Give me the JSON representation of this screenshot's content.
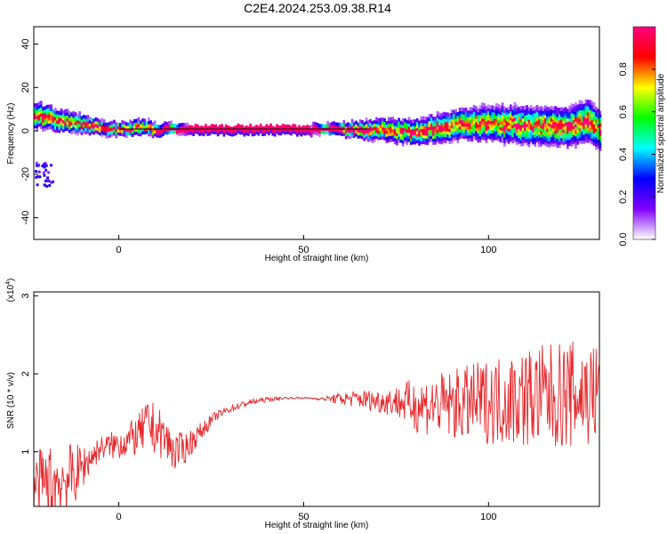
{
  "title": "C2E4.2024.253.09.38.R14",
  "chart_data": [
    {
      "type": "heatmap",
      "xlabel": "Height of straight line (km)",
      "ylabel": "Frequency (Hz)",
      "xlim": [
        -23,
        130
      ],
      "ylim": [
        -50,
        48
      ],
      "xticks": [
        0,
        50,
        100
      ],
      "yticks": [
        -40,
        -20,
        0,
        20,
        40
      ],
      "colorbar": {
        "label": "Normalized spectral amplitude",
        "range": [
          0.0,
          1.0
        ],
        "ticks": [
          0.0,
          0.2,
          0.4,
          0.6,
          0.8
        ],
        "tick_labels": [
          "0.0",
          "0.2",
          "0.4",
          "0.6",
          "0.8"
        ],
        "colormap": [
          "#ffffff",
          "#8000ff",
          "#0000ff",
          "#00ffff",
          "#00ff00",
          "#ffff00",
          "#ff0000",
          "#ff0080"
        ]
      },
      "ridge": {
        "x": [
          -23,
          -15,
          -8,
          0,
          5,
          10,
          20,
          30,
          40,
          50,
          60,
          65,
          70,
          80,
          90,
          100,
          110,
          120,
          127,
          130
        ],
        "frequency": [
          7,
          4,
          2,
          0,
          1,
          0,
          0,
          0,
          0,
          0,
          0,
          0,
          0,
          -1,
          2,
          3,
          2,
          1,
          4,
          0
        ],
        "spread_hz": [
          6,
          5,
          4,
          3,
          4,
          3,
          2,
          2,
          2,
          2,
          3,
          4,
          5,
          6,
          7,
          8,
          9,
          9,
          10,
          9
        ]
      },
      "noise_patch": {
        "x": [
          -23,
          -18
        ],
        "frequency": [
          -25,
          -14
        ]
      },
      "reference_line_hz": 0
    },
    {
      "type": "line",
      "xlabel": "Height of straight line (km)",
      "ylabel": "SNR (10 * v/v)",
      "y_multiplier": "(x10",
      "y_multiplier_exp": "4",
      "y_multiplier_close": ")",
      "xlim": [
        -23,
        130
      ],
      "ylim": [
        0.3,
        3.05
      ],
      "xticks": [
        0,
        50,
        100
      ],
      "yticks": [
        1,
        2,
        3
      ],
      "color": "#e8262a",
      "trend": {
        "x": [
          -23,
          -18,
          -12,
          -8,
          -5,
          0,
          5,
          8,
          12,
          15,
          18,
          22,
          26,
          30,
          35,
          40,
          45,
          50,
          55,
          60,
          65,
          70,
          75,
          80,
          90,
          100,
          110,
          120,
          130
        ],
        "y": [
          0.55,
          0.6,
          0.7,
          0.9,
          1.05,
          1.1,
          1.2,
          1.35,
          1.2,
          1.0,
          1.05,
          1.25,
          1.45,
          1.55,
          1.63,
          1.67,
          1.69,
          1.69,
          1.68,
          1.68,
          1.68,
          1.65,
          1.65,
          1.6,
          1.6,
          1.65,
          1.7,
          1.72,
          1.75
        ],
        "amplitude": [
          0.45,
          0.5,
          0.4,
          0.2,
          0.15,
          0.2,
          0.25,
          0.35,
          0.3,
          0.25,
          0.2,
          0.12,
          0.06,
          0.05,
          0.04,
          0.03,
          0.015,
          0.01,
          0.02,
          0.08,
          0.12,
          0.15,
          0.2,
          0.35,
          0.45,
          0.55,
          0.65,
          0.7,
          0.7
        ]
      }
    }
  ]
}
